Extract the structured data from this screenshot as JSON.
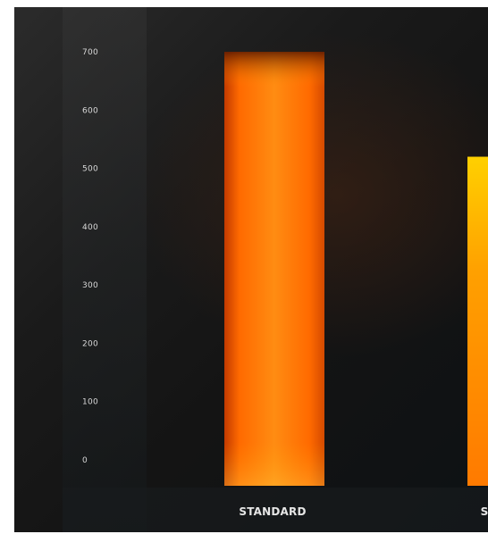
{
  "chart_data": {
    "type": "bar",
    "title": "",
    "xlabel": "",
    "ylabel": "",
    "categories": [
      "STANDARD",
      "S"
    ],
    "values": [
      700,
      520
    ],
    "ylim": [
      0,
      700
    ],
    "yticks": [
      0,
      100,
      200,
      300,
      400,
      500,
      600,
      700
    ],
    "ytick_labels": [
      "0",
      "100",
      "200",
      "300",
      "400",
      "500",
      "600",
      "700"
    ],
    "grid": false,
    "bar_colors": [
      "#ff7a10",
      "#ffb400"
    ]
  }
}
